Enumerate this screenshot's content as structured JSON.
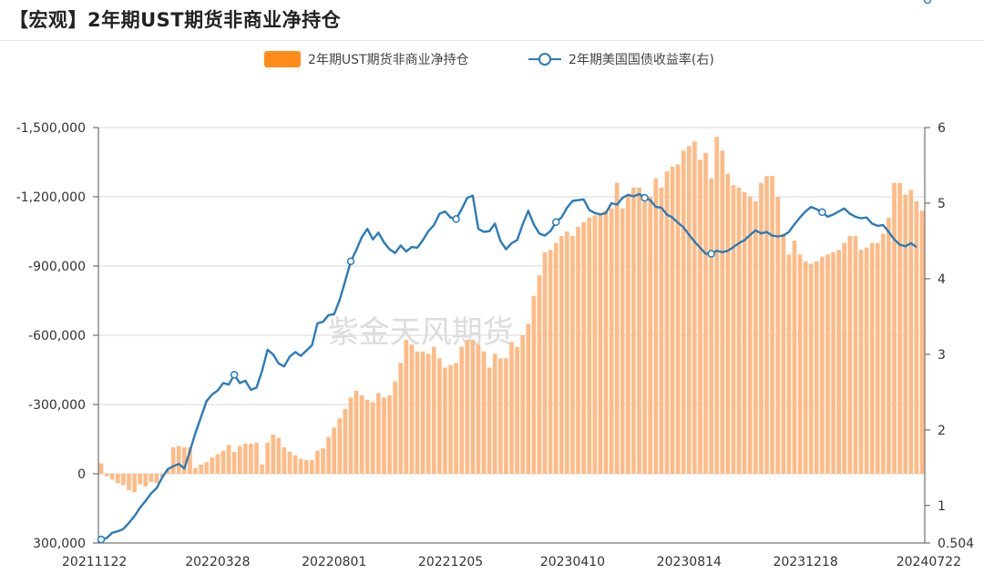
{
  "title": "【宏观】2年期UST期货非商业净持仓",
  "watermark": "紫金天风期货",
  "colors": {
    "bar": "#ffba85",
    "bar_legend": "#ff8c1a",
    "line": "#2b7bb9"
  },
  "chart_data": {
    "type": "bar",
    "legend": [
      {
        "name": "2年期UST期货非商业净持仓",
        "marker": "bar"
      },
      {
        "name": "2年期美国国债收益率(右)",
        "marker": "line"
      }
    ],
    "x_tick_labels": [
      "20211122",
      "20220328",
      "20220801",
      "20221205",
      "20230410",
      "20230814",
      "20231218",
      "20240722"
    ],
    "left_axis": {
      "ticks": [
        "-1,500,000",
        "-1,200,000",
        "-900,000",
        "-600,000",
        "-300,000",
        "0",
        "300,000"
      ],
      "tick_values": [
        -1500000,
        -1200000,
        -900000,
        -600000,
        -300000,
        0,
        300000
      ],
      "range": [
        300000,
        -1500000
      ],
      "inverted": true
    },
    "right_axis": {
      "ticks": [
        "6",
        "5",
        "4",
        "3",
        "2",
        "1",
        "0.504"
      ],
      "tick_values": [
        6,
        5,
        4,
        3,
        2,
        1,
        0.504
      ],
      "range": [
        0.504,
        6
      ]
    },
    "grid": true,
    "series": [
      {
        "name": "2年期UST期货非商业净持仓",
        "type": "bar",
        "axis": "left",
        "values": [
          -45000,
          10000,
          25000,
          40000,
          50000,
          70000,
          80000,
          45000,
          55000,
          35000,
          40000,
          15000,
          -20000,
          -115000,
          -120000,
          -115000,
          -115000,
          -25000,
          -40000,
          -50000,
          -70000,
          -85000,
          -100000,
          -125000,
          -95000,
          -120000,
          -130000,
          -130000,
          -135000,
          -40000,
          -135000,
          -170000,
          -155000,
          -115000,
          -95000,
          -80000,
          -65000,
          -60000,
          -60000,
          -100000,
          -110000,
          -160000,
          -200000,
          -240000,
          -280000,
          -330000,
          -360000,
          -340000,
          -320000,
          -310000,
          -350000,
          -330000,
          -340000,
          -400000,
          -480000,
          -580000,
          -560000,
          -530000,
          -530000,
          -520000,
          -550000,
          -500000,
          -460000,
          -470000,
          -480000,
          -550000,
          -580000,
          -580000,
          -560000,
          -530000,
          -460000,
          -520000,
          -500000,
          -500000,
          -570000,
          -550000,
          -600000,
          -650000,
          -770000,
          -860000,
          -960000,
          -970000,
          -1000000,
          -1030000,
          -1050000,
          -1030000,
          -1070000,
          -1090000,
          -1110000,
          -1120000,
          -1130000,
          -1140000,
          -1150000,
          -1260000,
          -1150000,
          -1210000,
          -1240000,
          -1240000,
          -1180000,
          -1200000,
          -1280000,
          -1240000,
          -1310000,
          -1330000,
          -1340000,
          -1400000,
          -1420000,
          -1440000,
          -1360000,
          -1390000,
          -1280000,
          -1460000,
          -1400000,
          -1300000,
          -1250000,
          -1240000,
          -1220000,
          -1200000,
          -1180000,
          -1260000,
          -1290000,
          -1290000,
          -1200000,
          -1040000,
          -950000,
          -1010000,
          -950000,
          -920000,
          -910000,
          -920000,
          -940000,
          -950000,
          -960000,
          -970000,
          -1000000,
          -1030000,
          -1030000,
          -970000,
          -980000,
          -1000000,
          -1000000,
          -1040000,
          -1110000,
          -1260000,
          -1260000,
          -1210000,
          -1230000,
          -1180000,
          -1140000
        ]
      },
      {
        "name": "2年期美国国债收益率(右)",
        "type": "line",
        "axis": "right",
        "values": [
          0.55,
          0.57,
          0.64,
          0.66,
          0.69,
          0.77,
          0.86,
          0.97,
          1.06,
          1.16,
          1.23,
          1.37,
          1.48,
          1.52,
          1.55,
          1.49,
          1.72,
          1.96,
          2.17,
          2.38,
          2.47,
          2.52,
          2.62,
          2.6,
          2.73,
          2.62,
          2.65,
          2.53,
          2.56,
          2.78,
          3.06,
          3.0,
          2.88,
          2.84,
          2.97,
          3.03,
          2.98,
          3.05,
          3.12,
          3.41,
          3.43,
          3.52,
          3.53,
          3.72,
          3.97,
          4.23,
          4.38,
          4.55,
          4.66,
          4.52,
          4.61,
          4.48,
          4.39,
          4.34,
          4.44,
          4.36,
          4.42,
          4.41,
          4.51,
          4.63,
          4.71,
          4.86,
          4.89,
          4.81,
          4.79,
          4.92,
          5.07,
          5.1,
          4.66,
          4.62,
          4.63,
          4.73,
          4.5,
          4.39,
          4.47,
          4.51,
          4.72,
          4.9,
          4.72,
          4.6,
          4.57,
          4.63,
          4.75,
          4.81,
          4.94,
          5.03,
          5.04,
          5.05,
          4.91,
          4.87,
          4.85,
          4.87,
          5.0,
          4.98,
          5.07,
          5.11,
          5.09,
          5.12,
          5.07,
          5.04,
          4.95,
          4.94,
          4.85,
          4.81,
          4.74,
          4.68,
          4.58,
          4.49,
          4.41,
          4.33,
          4.33,
          4.37,
          4.35,
          4.37,
          4.42,
          4.47,
          4.51,
          4.58,
          4.64,
          4.6,
          4.62,
          4.57,
          4.56,
          4.57,
          4.62,
          4.72,
          4.81,
          4.89,
          4.95,
          4.92,
          4.88,
          4.82,
          4.85,
          4.89,
          4.93,
          4.86,
          4.82,
          4.8,
          4.81,
          4.73,
          4.7,
          4.71,
          4.62,
          4.52,
          4.45,
          4.43,
          4.47,
          4.42
        ]
      }
    ],
    "line_markers": [
      0,
      24,
      45,
      64,
      82,
      98,
      110,
      130,
      149
    ]
  }
}
